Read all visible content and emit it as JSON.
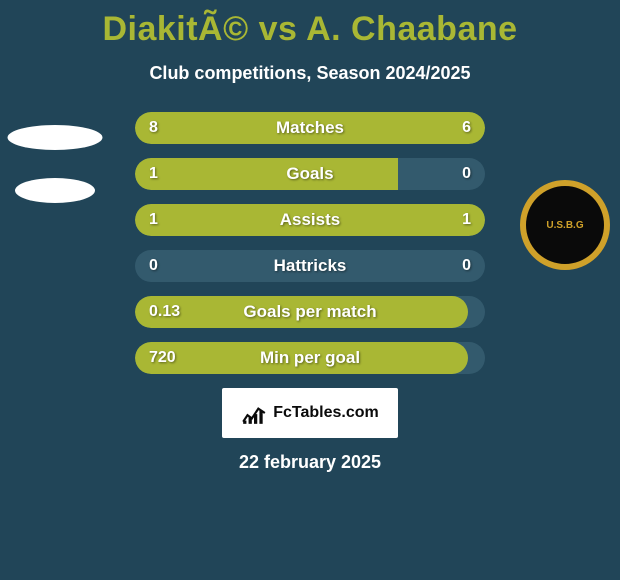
{
  "title": "DiakitÃ© vs A. Chaabane",
  "subtitle": "Club competitions, Season 2024/2025",
  "date": "22 february 2025",
  "logo_text": "FcTables.com",
  "colors": {
    "background": "#214558",
    "bar_bg": "#335a6d",
    "fill": "#a9b734",
    "title": "#a9b734",
    "text": "#ffffff"
  },
  "avatars": {
    "right_crest_text": "U.S.B.G"
  },
  "bars": [
    {
      "label": "Matches",
      "left_value": "8",
      "right_value": "6",
      "left_pct": 57,
      "right_pct": 43,
      "full": true
    },
    {
      "label": "Goals",
      "left_value": "1",
      "right_value": "0",
      "left_pct": 75,
      "right_pct": 0,
      "full": false
    },
    {
      "label": "Assists",
      "left_value": "1",
      "right_value": "1",
      "left_pct": 50,
      "right_pct": 50,
      "full": true
    },
    {
      "label": "Hattricks",
      "left_value": "0",
      "right_value": "0",
      "left_pct": 0,
      "right_pct": 0,
      "full": false
    },
    {
      "label": "Goals per match",
      "left_value": "0.13",
      "right_value": "",
      "left_pct": 95,
      "right_pct": 0,
      "full": false
    },
    {
      "label": "Min per goal",
      "left_value": "720",
      "right_value": "",
      "left_pct": 95,
      "right_pct": 0,
      "full": false
    }
  ]
}
